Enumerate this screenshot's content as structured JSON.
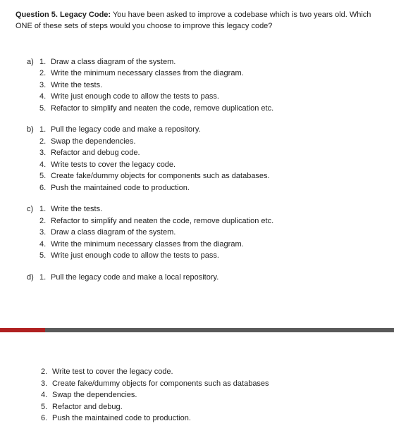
{
  "question": {
    "label": "Question 5. Legacy Code:",
    "text": " You have been asked to improve a codebase which is two years old. Which ONE of these sets of steps would you choose to improve this legacy code?"
  },
  "options": [
    {
      "id": "a)",
      "steps": [
        "Draw a class diagram of the system.",
        "Write the minimum necessary classes from the diagram.",
        "Write the tests.",
        "Write just enough code to allow the tests to pass.",
        "Refactor to simplify and neaten the code, remove duplication etc."
      ]
    },
    {
      "id": "b)",
      "steps": [
        "Pull the legacy code and make a repository.",
        "Swap the dependencies.",
        "Refactor and debug code.",
        "Write tests to cover the legacy code.",
        "Create fake/dummy objects for components such as databases.",
        "Push the maintained code to production."
      ]
    },
    {
      "id": "c)",
      "steps": [
        "Write the tests.",
        "Refactor to simplify and neaten the code, remove duplication etc.",
        "Draw a class diagram of the system.",
        "Write the minimum necessary classes from the diagram.",
        "Write just enough code to allow the tests to pass."
      ]
    },
    {
      "id": "d)",
      "steps_top": [
        "Pull the legacy code and make a local repository."
      ],
      "steps_bottom": [
        {
          "n": "2.",
          "t": "Write test to cover the legacy code."
        },
        {
          "n": "3.",
          "t": "Create fake/dummy objects for components such as databases"
        },
        {
          "n": "4.",
          "t": "Swap the dependencies."
        },
        {
          "n": "5.",
          "t": "Refactor and debug."
        },
        {
          "n": "6.",
          "t": "Push the maintained code to production."
        }
      ]
    }
  ],
  "colors": {
    "text": "#222222",
    "background": "#ffffff",
    "separator": "#5a5a5a",
    "separator_accent": "#b02020"
  },
  "typography": {
    "font_family": "Verdana, Geneva, sans-serif",
    "font_size_pt": 8
  }
}
